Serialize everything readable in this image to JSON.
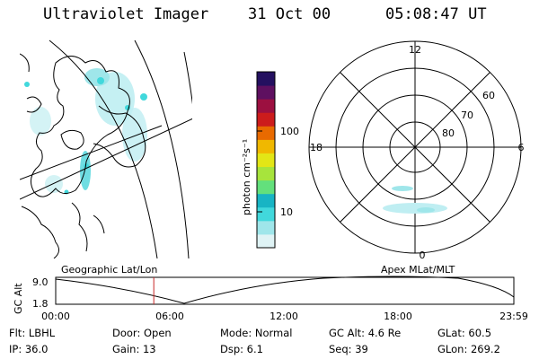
{
  "header": {
    "instrument": "Ultraviolet Imager",
    "date": "31 Oct 00",
    "time": "05:08:47 UT"
  },
  "colorbar": {
    "unit_label": "photon cm⁻²s⁻¹",
    "ticks": [
      "100",
      "10"
    ],
    "colors": [
      "#dff3f5",
      "#9fe6ea",
      "#41d8dc",
      "#18b4c4",
      "#63e07c",
      "#a7e43c",
      "#e3e616",
      "#f0b800",
      "#e86a00",
      "#cc1c1c",
      "#9c1040",
      "#5e1060",
      "#241060"
    ]
  },
  "polar_plot": {
    "mlt_labels": [
      "12",
      "18",
      "6",
      "0"
    ],
    "lat_labels": [
      "60",
      "70",
      "80"
    ]
  },
  "timeline": {
    "y_axis_label": "GC Alt",
    "y_ticks": [
      "9.0",
      "1.8"
    ],
    "left_label": "Geographic Lat/Lon",
    "right_label": "Apex MLat/MLT",
    "x_ticks": [
      "00:00",
      "06:00",
      "12:00",
      "18:00",
      "23:59"
    ],
    "current_time_fraction": 0.2141,
    "marker_color": "#c82828"
  },
  "info": {
    "flt": "Flt:  LBHL",
    "door": "Door:  Open",
    "mode": "Mode:  Normal",
    "gc_alt": "GC Alt:  4.6 Re",
    "glat": "GLat:   60.5",
    "ip": "IP:  36.0",
    "gain": "Gain:  13",
    "dsp": "Dsp:     6.1",
    "seq": "Seq:  39",
    "glon": "GLon:  269.2"
  }
}
